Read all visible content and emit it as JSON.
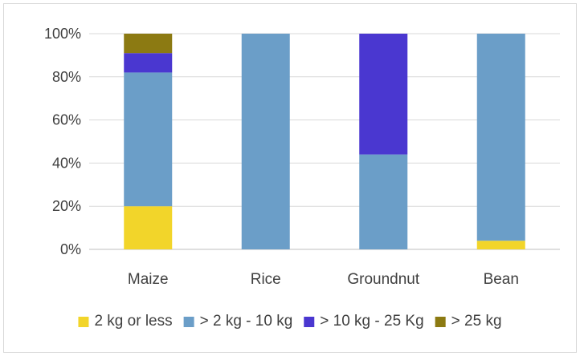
{
  "chart_data": {
    "type": "bar",
    "stacked": true,
    "normalized_percent": true,
    "categories": [
      "Maize",
      "Rice",
      "Groundnut",
      "Bean"
    ],
    "series": [
      {
        "name": "2 kg or less",
        "color": "#f2d52a",
        "values": [
          20,
          0,
          0,
          4
        ]
      },
      {
        "name": "> 2 kg - 10 kg",
        "color": "#6b9ec8",
        "values": [
          62,
          100,
          44,
          96
        ]
      },
      {
        "name": "> 10 kg - 25 Kg",
        "color": "#4a37d0",
        "values": [
          9,
          0,
          56,
          0
        ]
      },
      {
        "name": "> 25 kg",
        "color": "#8c7a12",
        "values": [
          9,
          0,
          0,
          0
        ]
      }
    ],
    "y_ticks": [
      "0%",
      "20%",
      "40%",
      "60%",
      "80%",
      "100%"
    ],
    "ylim": [
      0,
      100
    ],
    "grid": true,
    "legend_position": "bottom",
    "title": "",
    "xlabel": "",
    "ylabel": ""
  }
}
